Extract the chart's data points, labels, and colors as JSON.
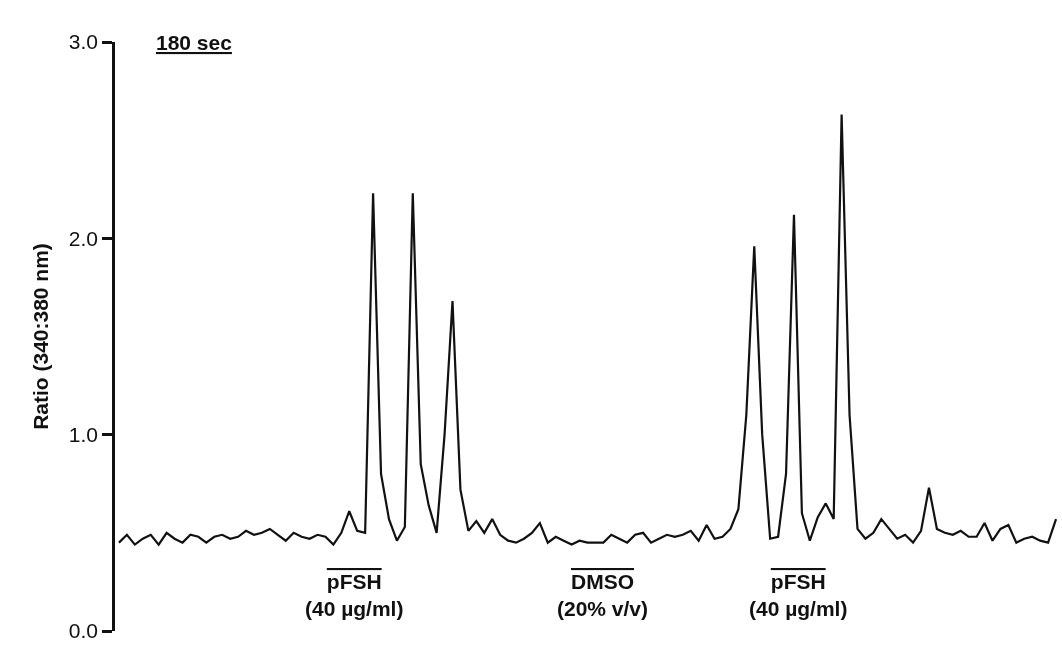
{
  "chart_data": {
    "type": "line",
    "ylabel": "Ratio (340:380 nm)",
    "categories": [
      null,
      null,
      null,
      null,
      null,
      null,
      null,
      null,
      null,
      null,
      null,
      null,
      null,
      null,
      null,
      null,
      null,
      null,
      null,
      null,
      null,
      null,
      null,
      null,
      null,
      null,
      null,
      null,
      null,
      null,
      null,
      null,
      null,
      null,
      null,
      null,
      null,
      null,
      null,
      null,
      null,
      null,
      null,
      null,
      null,
      null,
      null,
      null,
      null,
      null,
      null,
      null,
      null,
      null,
      null,
      null,
      null,
      null,
      null,
      null,
      null,
      null,
      null,
      null,
      null,
      null,
      null,
      null,
      null,
      null,
      null,
      null,
      null,
      null,
      null,
      null,
      null,
      null,
      null,
      null,
      null,
      null,
      null,
      null,
      null,
      null,
      null,
      null,
      null,
      null,
      null,
      null,
      null,
      null,
      null,
      null,
      null,
      null,
      null,
      null,
      null,
      null,
      null,
      null,
      null,
      null,
      null,
      null,
      null,
      null,
      null,
      null,
      null,
      null,
      null,
      null,
      null,
      null,
      null
    ],
    "series": [
      {
        "color": "#111111",
        "values": [
          0.45,
          0.49,
          0.44,
          0.47,
          0.49,
          0.44,
          0.5,
          0.47,
          0.45,
          0.49,
          0.48,
          0.45,
          0.48,
          0.49,
          0.47,
          0.48,
          0.51,
          0.49,
          0.5,
          0.52,
          0.49,
          0.46,
          0.5,
          0.48,
          0.47,
          0.49,
          0.48,
          0.44,
          0.5,
          0.61,
          0.51,
          0.5,
          2.23,
          0.8,
          0.57,
          0.46,
          0.53,
          2.23,
          0.85,
          0.64,
          0.5,
          1.0,
          1.68,
          0.72,
          0.51,
          0.56,
          0.5,
          0.57,
          0.49,
          0.46,
          0.45,
          0.47,
          0.5,
          0.55,
          0.45,
          0.48,
          0.46,
          0.44,
          0.46,
          0.45,
          0.45,
          0.45,
          0.49,
          0.47,
          0.45,
          0.49,
          0.5,
          0.45,
          0.47,
          0.49,
          0.48,
          0.49,
          0.51,
          0.46,
          0.54,
          0.47,
          0.48,
          0.52,
          0.62,
          1.1,
          1.96,
          1.0,
          0.47,
          0.48,
          0.8,
          2.12,
          0.6,
          0.46,
          0.58,
          0.65,
          0.57,
          2.63,
          1.1,
          0.52,
          0.47,
          0.5,
          0.57,
          0.52,
          0.47,
          0.49,
          0.45,
          0.51,
          0.73,
          0.52,
          0.5,
          0.49,
          0.51,
          0.48,
          0.48,
          0.55,
          0.46,
          0.52,
          0.54,
          0.45,
          0.47,
          0.48,
          0.46,
          0.45,
          0.57
        ]
      }
    ],
    "ylim": [
      0,
      3
    ],
    "yticks": [
      {
        "value": 0,
        "label": "0.0"
      },
      {
        "value": 1,
        "label": "1.0"
      },
      {
        "value": 2,
        "label": "2.0"
      },
      {
        "value": 3,
        "label": "3.0"
      }
    ],
    "tick_labels": "y",
    "line_style": "solid",
    "marker": "none",
    "annotations": [
      "180 sec",
      "pFSH\n(40 µg/ml)",
      "DMSO\n(20% v/v)",
      "pFSH\n(40 µg/ml)"
    ]
  }
}
